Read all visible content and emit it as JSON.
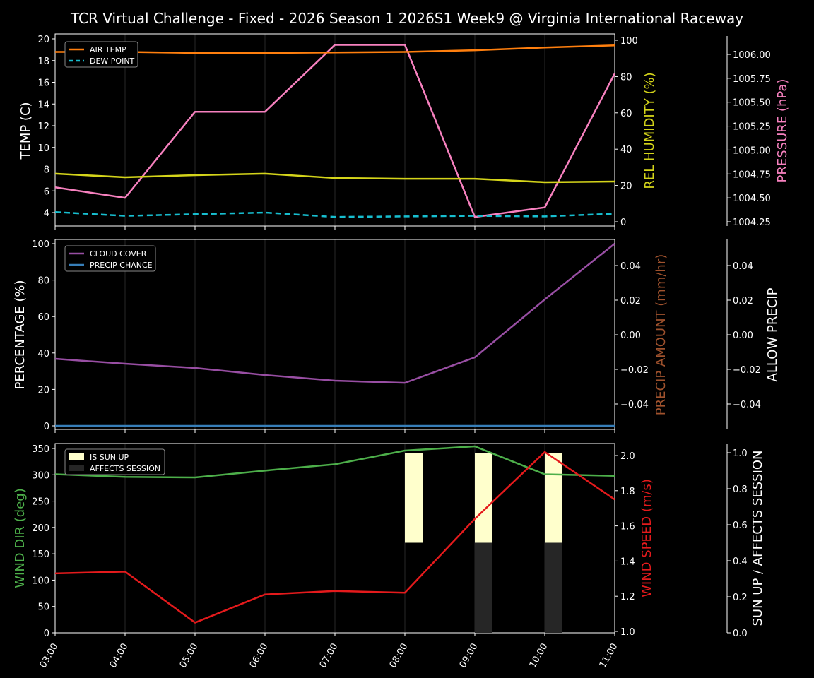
{
  "title": "TCR Virtual Challenge - Fixed - 2026 Season 1 2026S1 Week9 @ Virginia International Raceway",
  "colors": {
    "air_temp": "#ff7f0e",
    "dew_point": "#17becf",
    "humidity": "#d4d41a",
    "pressure": "#f781bf",
    "cloud_cover": "#984ea3",
    "precip_chance": "#377eb8",
    "precip_amount_label": "#a0522d",
    "wind_dir": "#4daf4a",
    "wind_speed": "#e41a1c",
    "sun_up": "#ffffcc",
    "affects_session": "#262626"
  },
  "chart_data": [
    {
      "type": "line",
      "panel": "temperature",
      "x": [
        "03:00",
        "04:00",
        "05:00",
        "06:00",
        "07:00",
        "08:00",
        "09:00",
        "10:00",
        "11:00"
      ],
      "series": [
        {
          "name": "AIR TEMP",
          "axis": "TEMP (C)",
          "values": [
            18.8,
            18.8,
            18.7,
            18.7,
            18.75,
            18.8,
            18.95,
            19.2,
            19.4
          ]
        },
        {
          "name": "DEW POINT",
          "axis": "TEMP (C)",
          "style": "dashed",
          "values": [
            4.05,
            3.7,
            3.85,
            4.0,
            3.6,
            3.65,
            3.7,
            3.65,
            3.9
          ]
        },
        {
          "name": "REL HUMIDITY",
          "axis": "REL HUMIDITY (%)",
          "values": [
            26.5,
            24.5,
            25.7,
            26.5,
            24.1,
            23.7,
            23.7,
            21.8,
            22.2
          ]
        },
        {
          "name": "PRESSURE",
          "axis": "PRESSURE (hPa)",
          "values": [
            1004.61,
            1004.5,
            1005.4,
            1005.4,
            1006.1,
            1006.1,
            1004.3,
            1004.4,
            1005.8
          ]
        }
      ],
      "axes": {
        "left": {
          "label": "TEMP (C)",
          "ticks": [
            "4",
            "6",
            "8",
            "10",
            "12",
            "14",
            "16",
            "18",
            "20"
          ]
        },
        "right1": {
          "label_main": "REL HUMIDITY",
          "label_unit": "(%)",
          "ticks": [
            "0",
            "20",
            "40",
            "60",
            "80",
            "100"
          ]
        },
        "right2": {
          "label_main": "PRESSURE",
          "label_unit": "(hPa)",
          "ticks": [
            "1004.25",
            "1004.50",
            "1004.75",
            "1005.00",
            "1005.25",
            "1005.50",
            "1005.75",
            "1006.00"
          ]
        }
      },
      "legend": [
        "AIR TEMP",
        "DEW POINT"
      ]
    },
    {
      "type": "line",
      "panel": "precipitation",
      "x": [
        "03:00",
        "04:00",
        "05:00",
        "06:00",
        "07:00",
        "08:00",
        "09:00",
        "10:00",
        "11:00"
      ],
      "series": [
        {
          "name": "CLOUD COVER",
          "axis": "PERCENTAGE (%)",
          "values": [
            36.8,
            34.1,
            31.8,
            27.9,
            24.8,
            23.6,
            37.6,
            69.4,
            100
          ]
        },
        {
          "name": "PRECIP CHANCE",
          "axis": "PERCENTAGE (%)",
          "values": [
            0,
            0,
            0,
            0,
            0,
            0,
            0,
            0,
            0
          ]
        }
      ],
      "axes": {
        "left": {
          "label": "PERCENTAGE (%)",
          "ticks": [
            "0",
            "20",
            "40",
            "60",
            "80",
            "100"
          ]
        },
        "right1": {
          "label": "PRECIP AMOUNT (mm/hr)",
          "ticks": [
            "−0.04",
            "−0.02",
            "0.00",
            "0.02",
            "0.04"
          ]
        },
        "right2": {
          "label": "ALLOW PRECIP",
          "ticks": [
            "−0.04",
            "−0.02",
            "0.00",
            "0.02",
            "0.04"
          ]
        }
      },
      "legend": [
        "CLOUD COVER",
        "PRECIP CHANCE"
      ]
    },
    {
      "type": "line",
      "panel": "wind",
      "x": [
        "03:00",
        "04:00",
        "05:00",
        "06:00",
        "07:00",
        "08:00",
        "09:00",
        "10:00",
        "11:00"
      ],
      "series": [
        {
          "name": "WIND DIR",
          "axis": "WIND DIR (deg)",
          "values": [
            301,
            296,
            295,
            308,
            320,
            346,
            354,
            301,
            298
          ]
        },
        {
          "name": "WIND SPEED",
          "axis": "WIND SPEED (m/s)",
          "values": [
            1.33,
            1.34,
            1.05,
            1.21,
            1.23,
            1.22,
            1.64,
            2.02,
            1.75
          ]
        },
        {
          "name": "IS SUN UP",
          "type": "bar",
          "axis": "SUN UP / AFFECTS SESSION",
          "values": [
            0,
            0,
            0,
            0,
            0,
            1,
            1,
            1,
            0
          ]
        },
        {
          "name": "AFFECTS SESSION",
          "type": "bar",
          "axis": "SUN UP / AFFECTS SESSION",
          "values": [
            0,
            0,
            0,
            0,
            0,
            0,
            1,
            1,
            0
          ]
        }
      ],
      "axes": {
        "left": {
          "label_main": "WIND DIR",
          "label_unit": "(deg)",
          "ticks": [
            "0",
            "50",
            "100",
            "150",
            "200",
            "250",
            "300",
            "350"
          ]
        },
        "right1": {
          "label_main": "WIND SPEED",
          "label_unit": "(m/s)",
          "ticks": [
            "1.0",
            "1.2",
            "1.4",
            "1.6",
            "1.8",
            "2.0"
          ]
        },
        "right2": {
          "label": "SUN UP / AFFECTS SESSION",
          "ticks": [
            "0.0",
            "0.2",
            "0.4",
            "0.6",
            "0.8",
            "1.0"
          ]
        }
      },
      "legend": [
        "IS SUN UP",
        "AFFECTS SESSION"
      ]
    }
  ]
}
